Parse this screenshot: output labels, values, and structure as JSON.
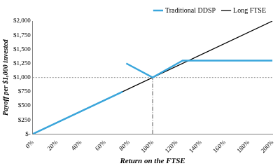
{
  "chart_data": {
    "type": "line",
    "x_label": "Return on the FTSE",
    "y_label": "Payoff per $1,000 invested",
    "xlim": [
      0,
      200
    ],
    "xticks": [
      {
        "value": 0,
        "label": "0%"
      },
      {
        "value": 20,
        "label": "20%"
      },
      {
        "value": 40,
        "label": "40%"
      },
      {
        "value": 60,
        "label": "60%"
      },
      {
        "value": 80,
        "label": "80%"
      },
      {
        "value": 100,
        "label": "100%"
      },
      {
        "value": 120,
        "label": "120%"
      },
      {
        "value": 140,
        "label": "140%"
      },
      {
        "value": 160,
        "label": "160%"
      },
      {
        "value": 180,
        "label": "180%"
      },
      {
        "value": 200,
        "label": "200%"
      }
    ],
    "ylim": [
      0,
      2000
    ],
    "yticks": [
      {
        "value": 0,
        "label": "$-"
      },
      {
        "value": 250,
        "label": "$250"
      },
      {
        "value": 500,
        "label": "$500"
      },
      {
        "value": 750,
        "label": "$750"
      },
      {
        "value": 1000,
        "label": "$1,000"
      },
      {
        "value": 1250,
        "label": "$1,250"
      },
      {
        "value": 1500,
        "label": "$1,500"
      },
      {
        "value": 1750,
        "label": "$1,750"
      },
      {
        "value": 2000,
        "label": "$2,000"
      }
    ],
    "grid": false,
    "legend": "top right",
    "reference_lines": {
      "y": 1000,
      "x": 100
    },
    "series": [
      {
        "name": "Long FTSE",
        "color": "#000000",
        "x": [
          0,
          200
        ],
        "values": [
          0,
          2000
        ]
      },
      {
        "name": "Traditional DDSP",
        "color": "#3aa6dc",
        "x": [
          0,
          75,
          76,
          78,
          100,
          125,
          200
        ],
        "values": [
          0,
          750,
          null,
          1250,
          1000,
          1300,
          1300
        ]
      }
    ]
  }
}
